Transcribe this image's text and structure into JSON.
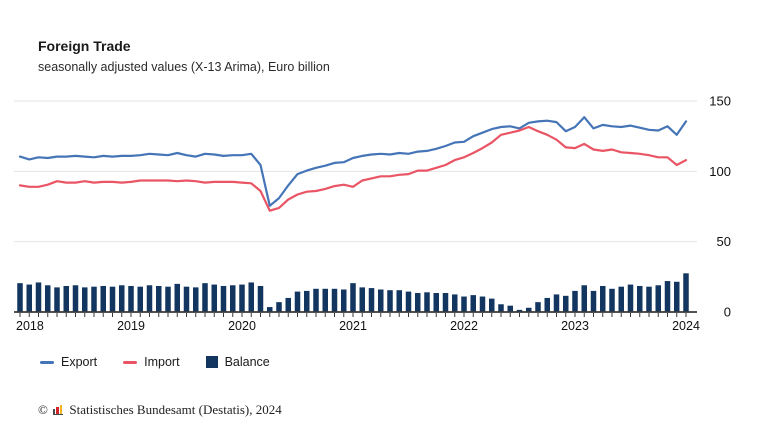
{
  "header": {
    "title": "Foreign Trade",
    "subtitle": "seasonally adjusted values (X-13 Arima), Euro billion"
  },
  "legend": {
    "export_label": "Export",
    "import_label": "Import",
    "balance_label": "Balance"
  },
  "footer": {
    "copyright_symbol": "©",
    "source_text": "Statistisches Bundesamt (Destatis), 2024",
    "logo_bar_colors": [
      "#4a4a4a",
      "#d02428",
      "#f0b41e"
    ]
  },
  "colors": {
    "export": "#4575b7",
    "import": "#e95565",
    "balance": "#12365f",
    "gridline": "#e5e5e5",
    "axis": "#3a3a3a",
    "label": "#111111"
  },
  "chart_data": {
    "type": "line+bar",
    "title": "Foreign Trade",
    "subtitle": "seasonally adjusted values (X-13 Arima), Euro billion",
    "unit": "Euro billion",
    "x_frequency": "monthly",
    "x_start": "2018-01",
    "x_end": "2024-01",
    "x_tick_labels": [
      "2018",
      "2019",
      "2020",
      "2021",
      "2022",
      "2023",
      "2024"
    ],
    "ylim": [
      0,
      150
    ],
    "y_ticks": [
      0,
      50,
      100,
      150
    ],
    "grid": "horizontal",
    "legend_position": "bottom-left",
    "series": [
      {
        "name": "Export",
        "type": "line",
        "color": "#4575b7",
        "values": [
          110.5,
          108.5,
          110.0,
          109.5,
          110.5,
          110.5,
          111.0,
          110.5,
          110.0,
          111.0,
          110.5,
          111.0,
          111.0,
          111.5,
          112.5,
          112.0,
          111.5,
          113.0,
          111.5,
          110.5,
          112.5,
          112.0,
          111.0,
          111.5,
          111.5,
          112.5,
          104.5,
          75.5,
          81.0,
          90.0,
          98.0,
          100.5,
          102.5,
          104.0,
          106.0,
          106.5,
          109.5,
          111.0,
          112.0,
          112.5,
          112.0,
          113.0,
          112.5,
          114.0,
          114.5,
          116.0,
          118.0,
          120.5,
          121.0,
          125.0,
          127.5,
          130.0,
          131.5,
          132.0,
          130.5,
          134.5,
          135.5,
          136.0,
          135.0,
          128.5,
          131.5,
          138.5,
          130.5,
          133.0,
          132.0,
          131.5,
          132.5,
          131.0,
          129.5,
          129.0,
          132.0,
          126.0,
          135.5
        ]
      },
      {
        "name": "Import",
        "type": "line",
        "color": "#e95565",
        "values": [
          90.0,
          89.0,
          89.0,
          90.5,
          93.0,
          92.0,
          92.0,
          93.0,
          92.0,
          92.5,
          92.5,
          92.0,
          92.5,
          93.5,
          93.5,
          93.5,
          93.5,
          93.0,
          93.5,
          93.0,
          92.0,
          92.5,
          92.5,
          92.5,
          92.0,
          91.5,
          86.0,
          72.0,
          74.0,
          80.0,
          83.5,
          85.5,
          86.0,
          87.5,
          89.5,
          90.5,
          89.0,
          93.5,
          95.0,
          96.5,
          96.5,
          97.5,
          98.0,
          100.5,
          100.5,
          102.5,
          104.5,
          108.0,
          110.0,
          113.0,
          116.5,
          120.5,
          126.0,
          127.5,
          129.0,
          131.5,
          128.5,
          126.0,
          122.5,
          117.0,
          116.5,
          119.5,
          115.5,
          114.5,
          115.5,
          113.5,
          113.0,
          112.5,
          111.5,
          110.0,
          110.0,
          104.5,
          108.0
        ]
      },
      {
        "name": "Balance",
        "type": "bar",
        "color": "#12365f",
        "values": [
          20.5,
          19.5,
          21.0,
          19.0,
          17.5,
          18.5,
          19.0,
          17.5,
          18.0,
          18.5,
          18.0,
          19.0,
          18.5,
          18.0,
          19.0,
          18.5,
          18.0,
          20.0,
          18.0,
          17.5,
          20.5,
          19.5,
          18.5,
          19.0,
          19.5,
          21.0,
          18.5,
          3.5,
          7.0,
          10.0,
          14.5,
          15.0,
          16.5,
          16.5,
          16.5,
          16.0,
          20.5,
          17.5,
          17.0,
          16.0,
          15.5,
          15.5,
          14.5,
          13.5,
          14.0,
          13.5,
          13.5,
          12.5,
          11.0,
          12.0,
          11.0,
          9.5,
          5.5,
          4.5,
          1.5,
          3.0,
          7.0,
          10.0,
          12.5,
          11.5,
          15.0,
          19.0,
          15.0,
          18.5,
          16.5,
          18.0,
          19.5,
          18.5,
          18.0,
          19.0,
          22.0,
          21.5,
          27.5
        ]
      }
    ]
  }
}
